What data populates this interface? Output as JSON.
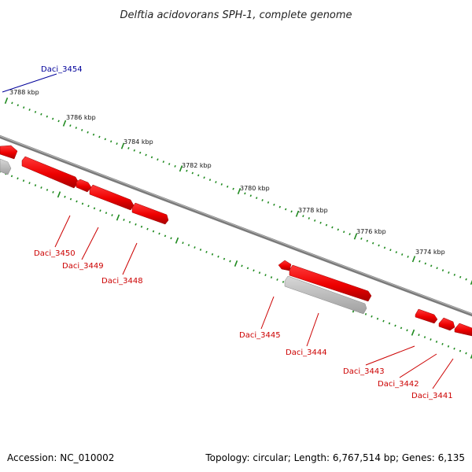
{
  "title": "Delftia acidovorans SPH-1, complete genome",
  "footer": {
    "accession": "Accession: NC_010002",
    "summary": "Topology: circular; Length: 6,767,514 bp; Genes: 6,135"
  },
  "colors": {
    "backbone": "#808080",
    "tick": "#1f8a1f",
    "gene_forward": "#ee0000",
    "gene_pseudo": "#b9b9b9",
    "label_red": "#cc0000",
    "label_blue": "#00009a"
  },
  "kbp_labels": [
    "3788 kbp",
    "3786 kbp",
    "3784 kbp",
    "3782 kbp",
    "3780 kbp",
    "3778 kbp",
    "3776 kbp",
    "3774 kbp"
  ],
  "gene_labels": [
    {
      "text": "Daci_3454",
      "color": "blue"
    },
    {
      "text": "Daci_3450",
      "color": "red"
    },
    {
      "text": "Daci_3449",
      "color": "red"
    },
    {
      "text": "Daci_3448",
      "color": "red"
    },
    {
      "text": "Daci_3445",
      "color": "red"
    },
    {
      "text": "Daci_3444",
      "color": "red"
    },
    {
      "text": "Daci_3443",
      "color": "red"
    },
    {
      "text": "Daci_3442",
      "color": "red"
    },
    {
      "text": "Daci_3441",
      "color": "red"
    }
  ]
}
